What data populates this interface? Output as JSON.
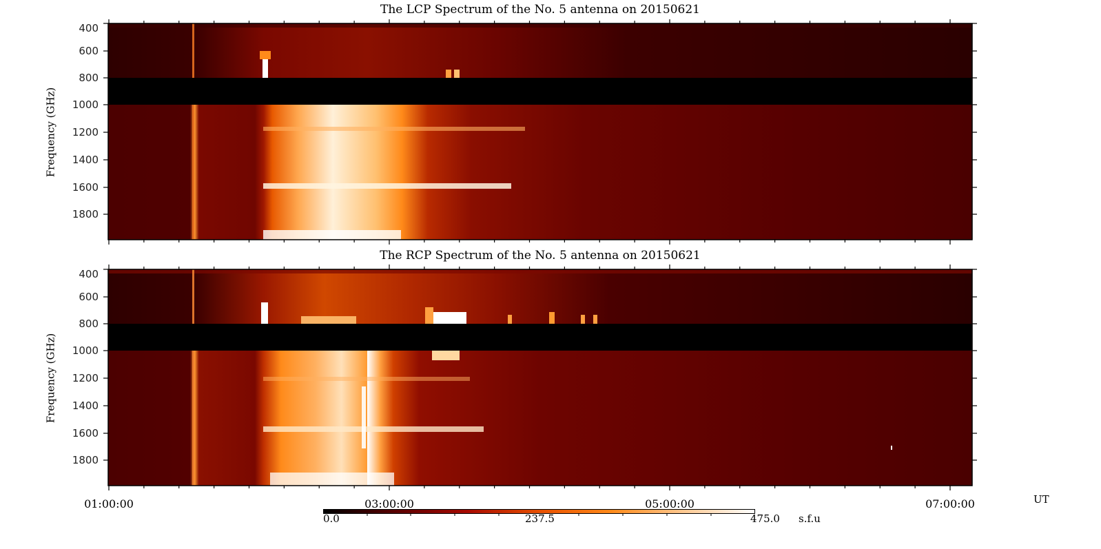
{
  "chart_data": [
    {
      "type": "heatmap",
      "title": "The LCP Spectrum of the No. 5 antenna on 20150621",
      "xlabel": "UT",
      "ylabel": "Frequency (GHz)",
      "x_tick_labels": [
        "01:00:00",
        "03:00:00",
        "05:00:00",
        "07:00:00"
      ],
      "xlim": [
        "01:00:00",
        "07:05:00"
      ],
      "y_tick_labels": [
        "400",
        "600",
        "800",
        "1000",
        "1200",
        "1400",
        "1600",
        "1800"
      ],
      "ylim": [
        400,
        2000
      ],
      "y_inverted": true,
      "masked_band_GHz": [
        800,
        1000
      ],
      "features": [
        {
          "description": "narrow bright vertical stripe",
          "time": "01:37",
          "freq_range": [
            400,
            2000
          ]
        },
        {
          "description": "bright burst onset",
          "time": "02:05",
          "freq_range": [
            600,
            800
          ],
          "intensity": "~475 s.f.u"
        },
        {
          "description": "broad bright emission region",
          "time_range": [
            "02:05",
            "03:00"
          ],
          "freq_range": [
            1100,
            2000
          ],
          "intensity": "300-475 s.f.u"
        },
        {
          "description": "bright horizontal line",
          "time_range": [
            "02:05",
            "02:50"
          ],
          "freq": 1570
        },
        {
          "description": "small bursts",
          "time_range": [
            "03:35",
            "03:42"
          ],
          "freq": 780
        },
        {
          "description": "quiet background",
          "time_range": [
            "03:30",
            "07:05"
          ],
          "intensity": "~100-130 s.f.u"
        }
      ]
    },
    {
      "type": "heatmap",
      "title": "The RCP Spectrum of the No. 5 antenna on 20150621",
      "xlabel": "UT",
      "ylabel": "Frequency (GHz)",
      "x_tick_labels": [
        "01:00:00",
        "03:00:00",
        "05:00:00",
        "07:00:00"
      ],
      "xlim": [
        "01:00:00",
        "07:05:00"
      ],
      "y_tick_labels": [
        "400",
        "600",
        "800",
        "1000",
        "1200",
        "1400",
        "1600",
        "1800"
      ],
      "ylim": [
        400,
        2000
      ],
      "y_inverted": true,
      "masked_band_GHz": [
        800,
        1000
      ],
      "features": [
        {
          "description": "narrow bright vertical stripe",
          "time": "01:37",
          "freq_range": [
            400,
            2000
          ]
        },
        {
          "description": "bright burst",
          "time": "02:05",
          "freq_range": [
            650,
            800
          ],
          "intensity": "~475 s.f.u"
        },
        {
          "description": "broad bright emission region",
          "time_range": [
            "02:05",
            "02:55"
          ],
          "freq_range": [
            400,
            2000
          ],
          "intensity": "300-475 s.f.u"
        },
        {
          "description": "bright vertical streak",
          "time": "02:43",
          "freq_range": [
            1300,
            1700
          ]
        },
        {
          "description": "intense burst patch",
          "time_range": [
            "03:25",
            "03:45"
          ],
          "freq_range": [
            720,
            1030
          ],
          "intensity": "475 s.f.u (saturated)"
        },
        {
          "description": "series of small bursts",
          "time_range": [
            "04:00",
            "04:30"
          ],
          "freq": 780
        },
        {
          "description": "isolated point",
          "time": "06:35",
          "freq": 1700
        },
        {
          "description": "quiet background",
          "time_range": [
            "03:00",
            "07:05"
          ],
          "intensity": "~100-130 s.f.u"
        }
      ]
    }
  ],
  "colorbar": {
    "min_label": "0.0",
    "mid_label": "237.5",
    "max_label": "475.0",
    "unit": "s.f.u",
    "range": [
      0,
      475
    ],
    "colormap": "red-temperature",
    "stops": [
      "#000000",
      "#5a0000",
      "#a80a00",
      "#e85000",
      "#ff8a1a",
      "#ffc890",
      "#ffffff"
    ]
  },
  "axis": {
    "x_unit_label": "UT",
    "y_label": "Frequency (GHz)"
  }
}
